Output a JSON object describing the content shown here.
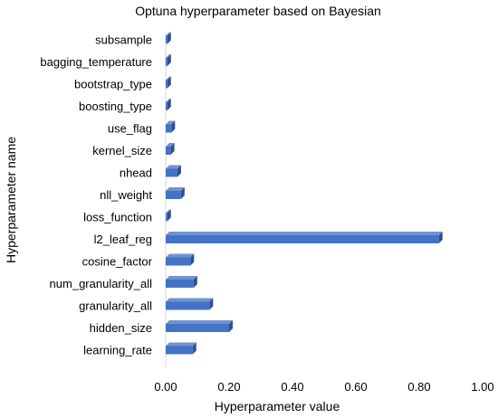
{
  "chart_data": {
    "type": "bar",
    "orientation": "horizontal",
    "title": "Optuna hyperparameter based on Bayesian",
    "xlabel": "Hyperparameter value",
    "ylabel": "Hyperparameter name",
    "categories": [
      "subsample",
      "bagging_temperature",
      "bootstrap_type",
      "boosting_type",
      "use_flag",
      "kernel_size",
      "nhead",
      "nll_weight",
      "loss_function",
      "l2_leaf_reg",
      "cosine_factor",
      "num_granularity_all",
      "granularity_all",
      "hidden_size",
      "learning_rate"
    ],
    "values": [
      0.005,
      0.005,
      0.005,
      0.005,
      0.018,
      0.016,
      0.037,
      0.048,
      0.005,
      0.862,
      0.078,
      0.088,
      0.138,
      0.2,
      0.085
    ],
    "xlim": [
      0,
      1
    ],
    "xticks": [
      "0.00",
      "0.20",
      "0.40",
      "0.60",
      "0.80",
      "1.00"
    ],
    "grid": false,
    "legend": "none",
    "bar_color": "#4472c4",
    "bar_shadow_color": "#2f4f87"
  }
}
